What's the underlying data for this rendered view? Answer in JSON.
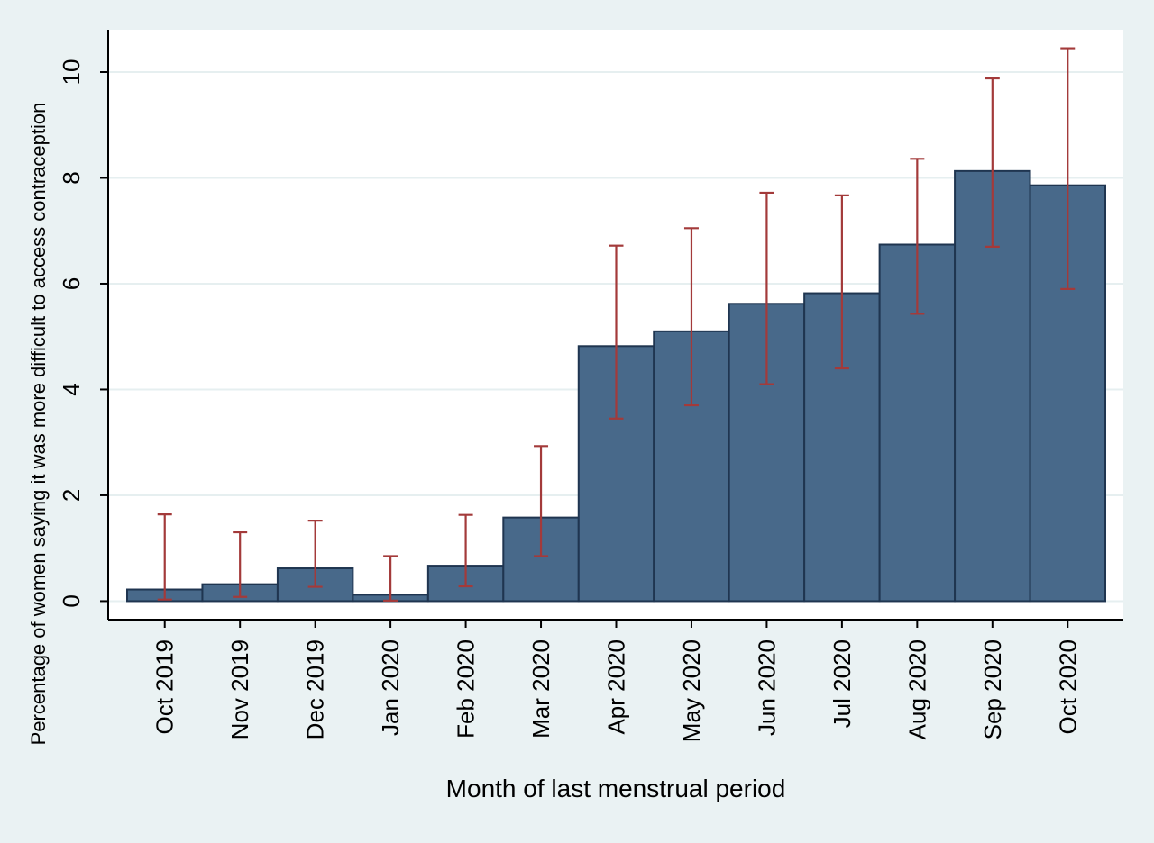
{
  "chart_data": {
    "type": "bar",
    "title": "",
    "xlabel": "Month of last menstrual period",
    "ylabel": "Percentage of women saying it was more difficult to access contraception",
    "categories": [
      "Oct 2019",
      "Nov 2019",
      "Dec 2019",
      "Jan 2020",
      "Feb 2020",
      "Mar 2020",
      "Apr 2020",
      "May 2020",
      "Jun 2020",
      "Jul 2020",
      "Aug 2020",
      "Sep 2020",
      "Oct 2020"
    ],
    "values": [
      0.22,
      0.32,
      0.62,
      0.12,
      0.67,
      1.58,
      4.82,
      5.1,
      5.62,
      5.82,
      6.74,
      8.13,
      7.86
    ],
    "ci_lower": [
      0.03,
      0.08,
      0.27,
      0.01,
      0.28,
      0.85,
      3.45,
      3.7,
      4.1,
      4.4,
      5.43,
      6.7,
      5.9
    ],
    "ci_upper": [
      1.64,
      1.3,
      1.52,
      0.85,
      1.63,
      2.93,
      6.72,
      7.05,
      7.72,
      7.67,
      8.36,
      9.88,
      10.45
    ],
    "ylim": [
      -0.35,
      10.8
    ],
    "yticks": [
      0,
      2,
      4,
      6,
      8,
      10
    ],
    "grid": true,
    "legend": "none",
    "colors": {
      "background": "#eaf2f3",
      "plot_background": "#ffffff",
      "bar_fill": "#48698a",
      "bar_stroke": "#1f3550",
      "error_bar": "#a33a3a",
      "grid": "#e6eff0",
      "axis": "#000000"
    }
  }
}
